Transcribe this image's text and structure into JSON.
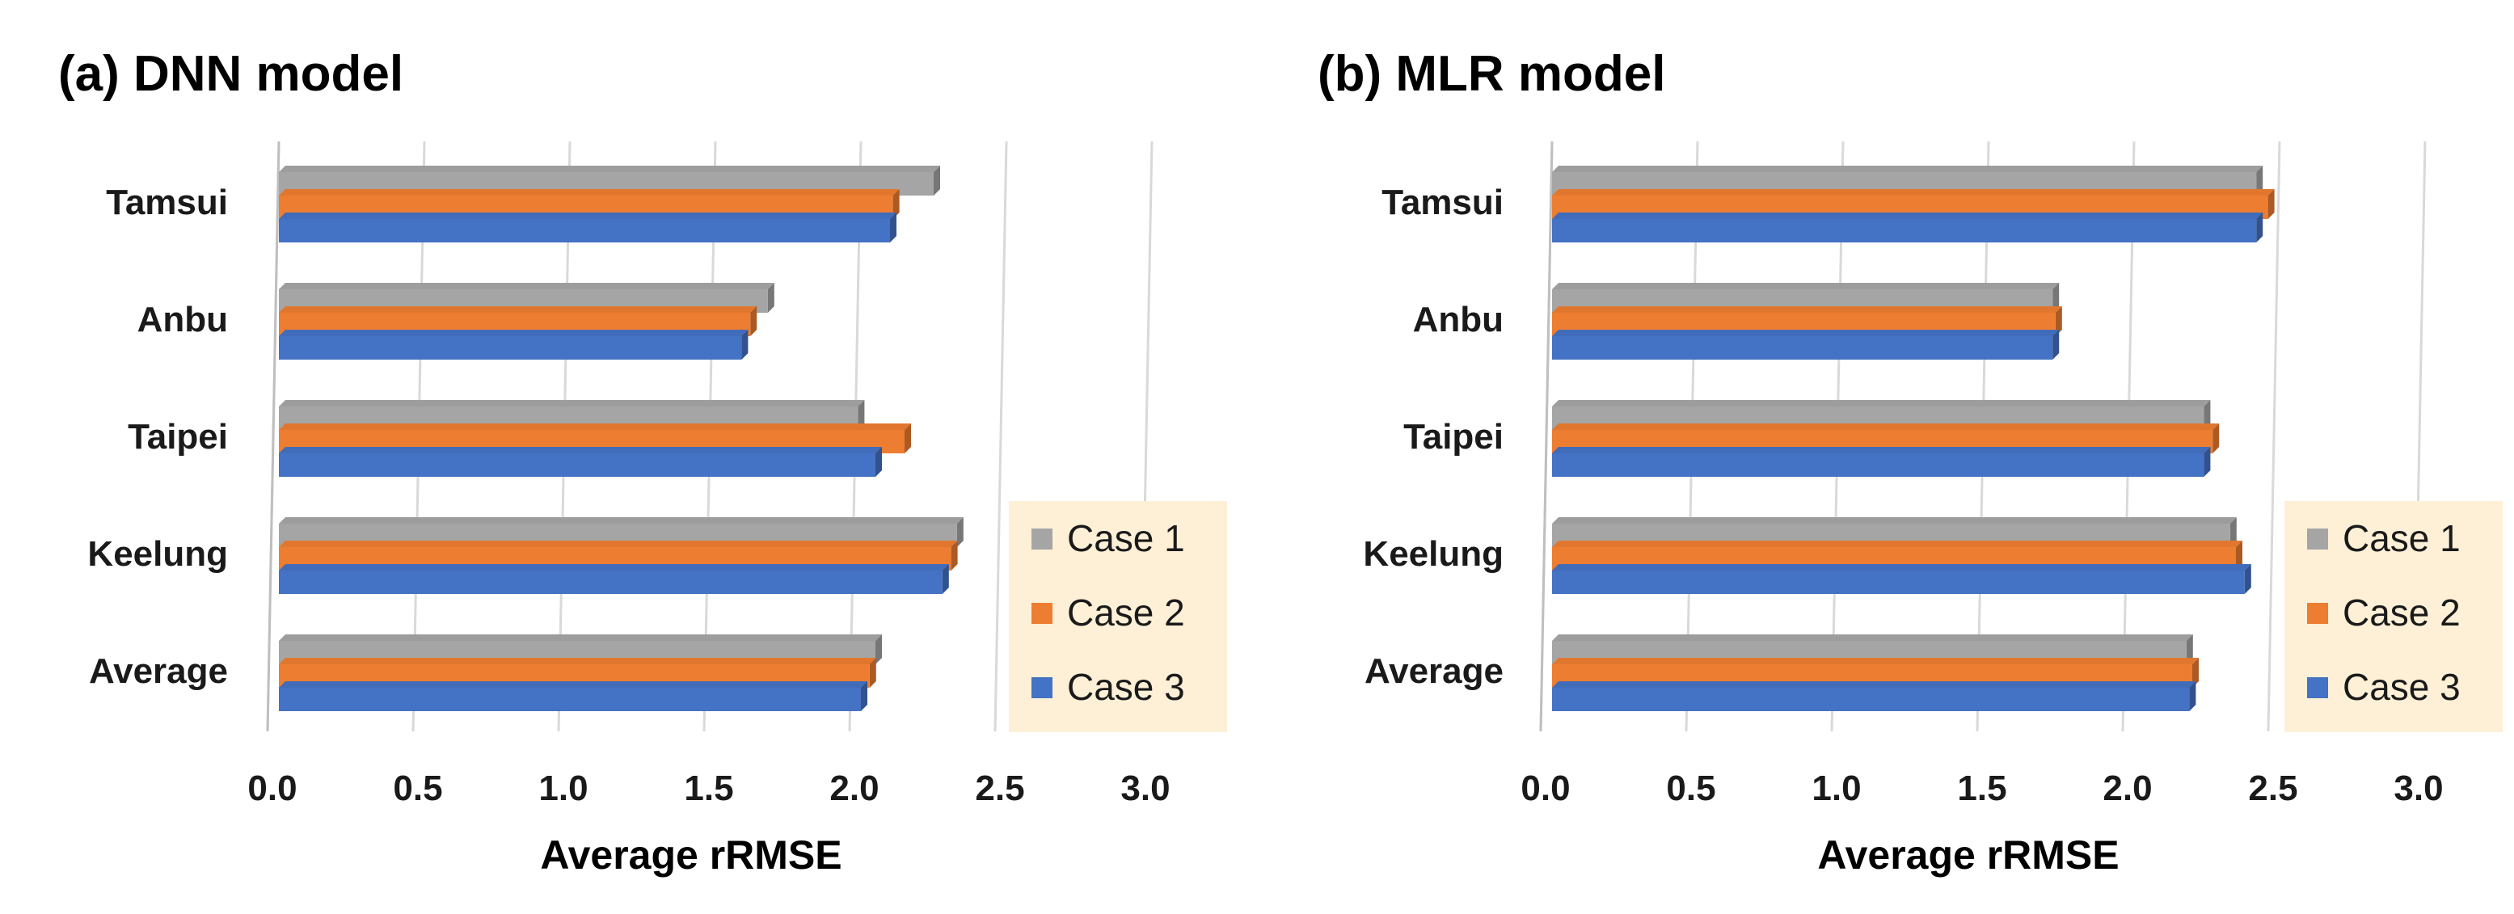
{
  "chart_data": [
    {
      "type": "bar",
      "orientation": "horizontal",
      "title": "(a) DNN model",
      "xlabel": "Average rRMSE",
      "ylabel": "",
      "categories": [
        "Average",
        "Keelung",
        "Taipei",
        "Anbu",
        "Tamsui"
      ],
      "series": [
        {
          "name": "Case 1",
          "color": "#a5a5a5",
          "values": [
            2.05,
            2.33,
            1.99,
            1.68,
            2.25
          ]
        },
        {
          "name": "Case 2",
          "color": "#ed7d31",
          "values": [
            2.03,
            2.31,
            2.15,
            1.62,
            2.11
          ]
        },
        {
          "name": "Case 3",
          "color": "#4472c4",
          "values": [
            2.0,
            2.28,
            2.05,
            1.59,
            2.1
          ]
        }
      ],
      "xlim": [
        0,
        3.0
      ],
      "xticks": [
        "0.0",
        "0.5",
        "1.0",
        "1.5",
        "2.0",
        "2.5",
        "3.0"
      ],
      "grid": "vertical",
      "legend": "right"
    },
    {
      "type": "bar",
      "orientation": "horizontal",
      "title": "(b) MLR model",
      "xlabel": "Average rRMSE",
      "ylabel": "",
      "categories": [
        "Average",
        "Keelung",
        "Taipei",
        "Anbu",
        "Tamsui"
      ],
      "series": [
        {
          "name": "Case 1",
          "color": "#a5a5a5",
          "values": [
            2.18,
            2.33,
            2.24,
            1.72,
            2.42
          ]
        },
        {
          "name": "Case 2",
          "color": "#ed7d31",
          "values": [
            2.2,
            2.35,
            2.27,
            1.73,
            2.46
          ]
        },
        {
          "name": "Case 3",
          "color": "#4472c4",
          "values": [
            2.19,
            2.38,
            2.24,
            1.72,
            2.42
          ]
        }
      ],
      "xlim": [
        0,
        3.0
      ],
      "xticks": [
        "0.0",
        "0.5",
        "1.0",
        "1.5",
        "2.0",
        "2.5",
        "3.0"
      ],
      "grid": "vertical",
      "legend": "right"
    }
  ],
  "colors": {
    "legend_bg": "#fdf0d6",
    "grid": "#d9d9d9",
    "axis": "#bfbfbf"
  }
}
